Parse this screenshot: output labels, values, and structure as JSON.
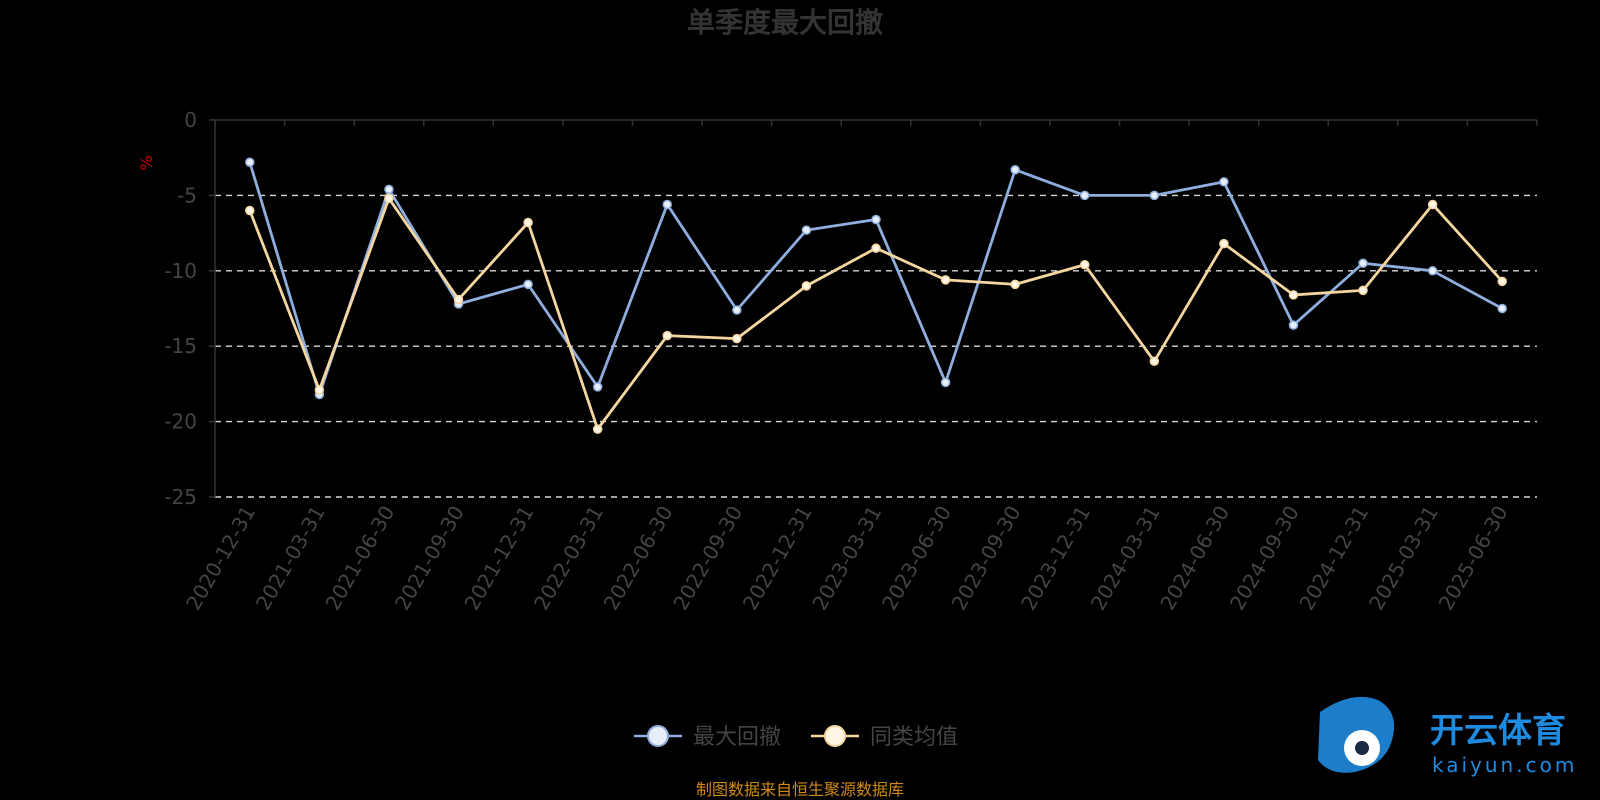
{
  "chart_data": {
    "type": "line",
    "title": "单季度最大回撤",
    "ylabel": "%",
    "ylim": [
      -25,
      0
    ],
    "yticks": [
      0,
      -5,
      -10,
      -15,
      -20,
      -25
    ],
    "grid": true,
    "legend_position": "bottom",
    "categories": [
      "2020-12-31",
      "2021-03-31",
      "2021-06-30",
      "2021-09-30",
      "2021-12-31",
      "2022-03-31",
      "2022-06-30",
      "2022-09-30",
      "2022-12-31",
      "2023-03-31",
      "2023-06-30",
      "2023-09-30",
      "2023-12-31",
      "2024-03-31",
      "2024-06-30",
      "2024-09-30",
      "2024-12-31",
      "2025-03-31",
      "2025-06-30"
    ],
    "series": [
      {
        "name": "最大回撤",
        "color": "#8eaede",
        "marker_fill": "#e8eef8",
        "values": [
          -2.8,
          -18.2,
          -4.6,
          -12.2,
          -10.9,
          -17.7,
          -5.6,
          -12.6,
          -7.3,
          -6.6,
          -17.4,
          -3.3,
          -5.0,
          -5.0,
          -4.1,
          -13.6,
          -9.5,
          -10.0,
          -12.5
        ]
      },
      {
        "name": "同类均值",
        "color": "#f6d6a0",
        "marker_fill": "#fff6e6",
        "values": [
          -6.0,
          -17.9,
          -5.2,
          -11.9,
          -6.8,
          -20.5,
          -14.3,
          -14.5,
          -11.0,
          -8.5,
          -10.6,
          -10.9,
          -9.6,
          -16.0,
          -8.2,
          -11.6,
          -11.3,
          -5.6,
          -10.7
        ]
      }
    ]
  },
  "source_note": "制图数据来自恒生聚源数据库",
  "watermark": {
    "cn": "开云体育",
    "en": "kaiyun.com"
  }
}
